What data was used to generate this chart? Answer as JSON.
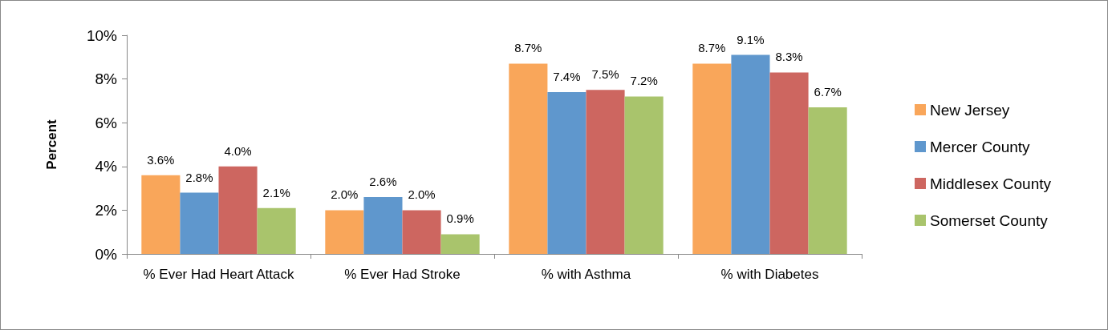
{
  "chart_data": {
    "type": "bar",
    "ylabel": "Percent",
    "categories": [
      "% Ever Had Heart Attack",
      "% Ever Had Stroke",
      "% with Asthma",
      "% with Diabetes"
    ],
    "series": [
      {
        "name": "New Jersey",
        "color": "#f9a65a",
        "values": [
          3.6,
          2.0,
          8.7,
          8.7
        ],
        "value_labels": [
          "3.6%",
          "2.0%",
          "8.7%",
          "8.7%"
        ]
      },
      {
        "name": "Mercer County",
        "color": "#5f97cd",
        "values": [
          2.8,
          2.6,
          7.4,
          9.1
        ],
        "value_labels": [
          "2.8%",
          "2.6%",
          "7.4%",
          "9.1%"
        ]
      },
      {
        "name": "Middlesex County",
        "color": "#cd6660",
        "values": [
          4.0,
          2.0,
          7.5,
          8.3
        ],
        "value_labels": [
          "4.0%",
          "2.0%",
          "7.5%",
          "8.3%"
        ]
      },
      {
        "name": "Somerset County",
        "color": "#a9c46c",
        "values": [
          2.1,
          0.9,
          7.2,
          6.7
        ],
        "value_labels": [
          "2.1%",
          "0.9%",
          "7.2%",
          "6.7%"
        ]
      }
    ],
    "ylim": [
      0,
      10
    ],
    "yticks": [
      {
        "value": 0,
        "label": "0%"
      },
      {
        "value": 2,
        "label": "2%"
      },
      {
        "value": 4,
        "label": "4%"
      },
      {
        "value": 6,
        "label": "6%"
      },
      {
        "value": 8,
        "label": "8%"
      },
      {
        "value": 10,
        "label": "10%"
      }
    ],
    "grid": false,
    "legend": "right"
  }
}
